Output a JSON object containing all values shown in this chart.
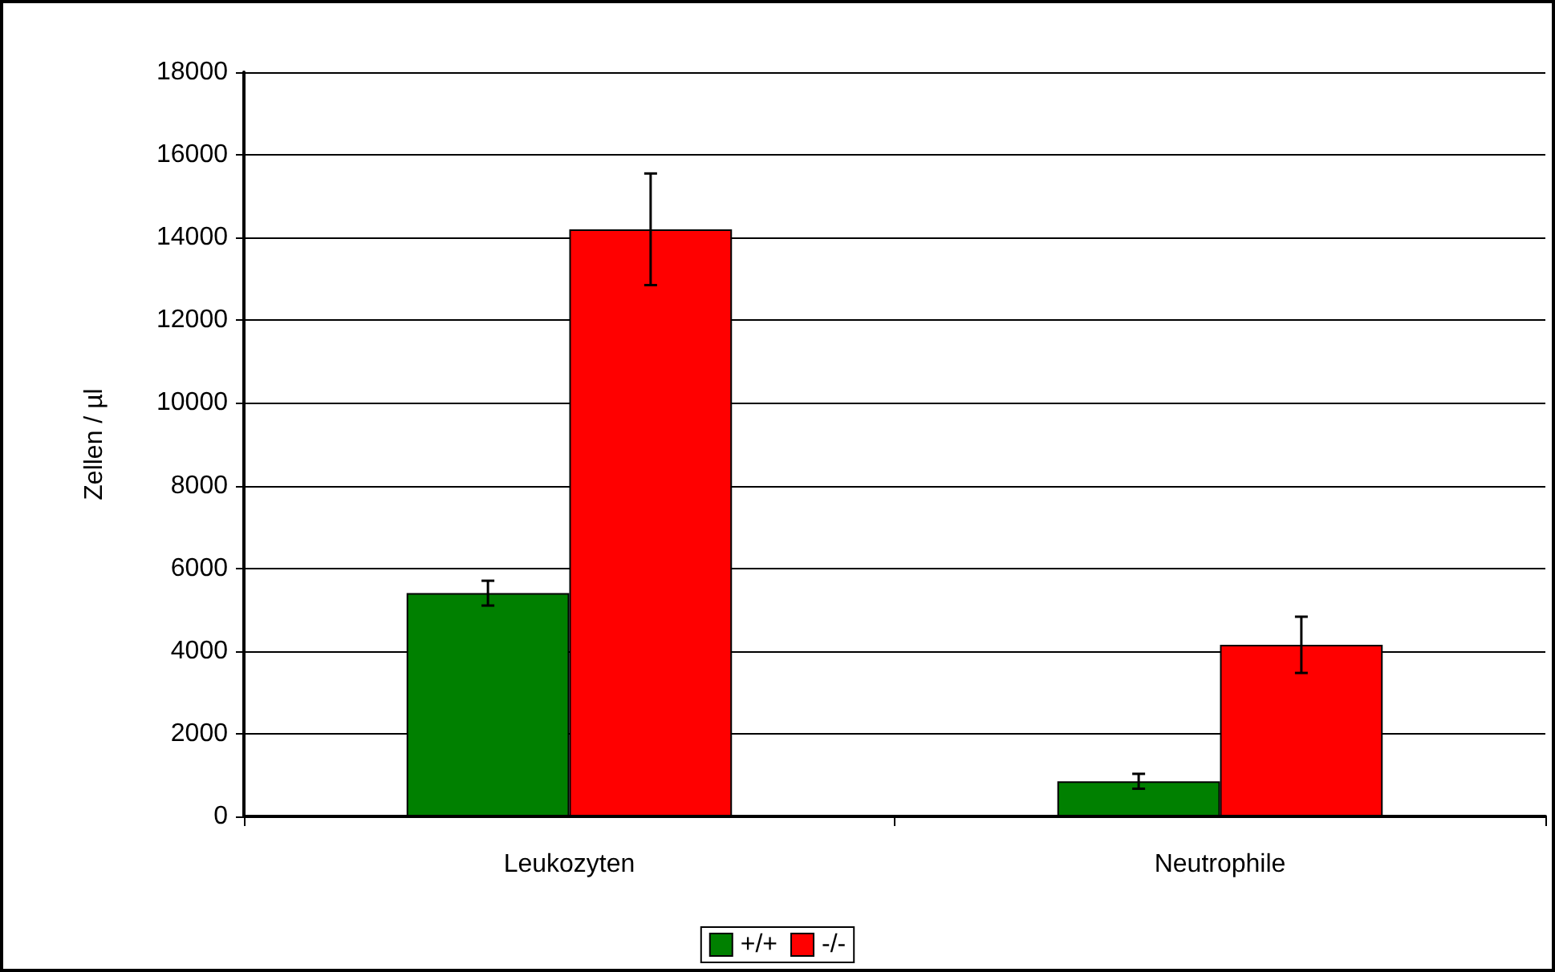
{
  "chart_data": {
    "type": "bar",
    "ylabel": "Zellen / µl",
    "categories": [
      "Leukozyten",
      "Neutrophile"
    ],
    "series": [
      {
        "name": "+/+",
        "color": "#008000",
        "values": [
          5400,
          850
        ],
        "errors": [
          300,
          180
        ]
      },
      {
        "name": "-/-",
        "color": "#ff0000",
        "values": [
          14200,
          4150
        ],
        "errors": [
          1350,
          680
        ]
      }
    ],
    "ylim": [
      0,
      18000
    ],
    "yticks": [
      0,
      2000,
      4000,
      6000,
      8000,
      10000,
      12000,
      14000,
      16000,
      18000
    ],
    "grid": "y",
    "legend": "bottom"
  }
}
